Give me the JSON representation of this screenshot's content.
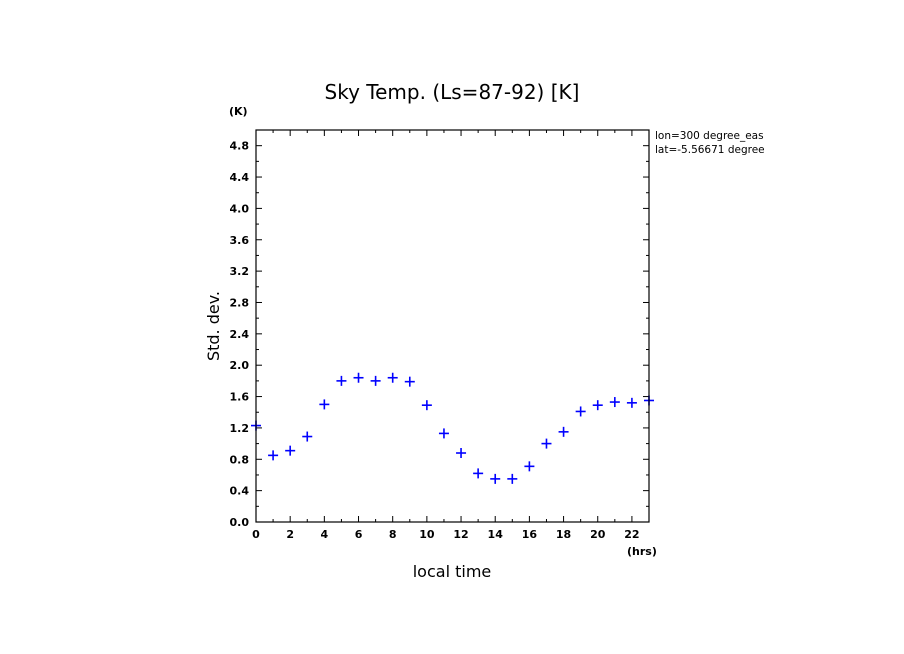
{
  "chart_data": {
    "type": "scatter",
    "title": "Sky Temp. (Ls=87-92) [K]",
    "xlabel": "local time",
    "ylabel": "Std. dev.",
    "x_unit": "(hrs)",
    "y_unit": "(K)",
    "xlim": [
      0,
      23
    ],
    "ylim": [
      0,
      5.0
    ],
    "x_ticks": [
      0,
      2,
      4,
      6,
      8,
      10,
      12,
      14,
      16,
      18,
      20,
      22
    ],
    "x_tick_labels": [
      "0",
      "2",
      "4",
      "6",
      "8",
      "10",
      "12",
      "14",
      "16",
      "18",
      "20",
      "22"
    ],
    "y_ticks": [
      0,
      0.4,
      0.8,
      1.2,
      1.6,
      2.0,
      2.4,
      2.8,
      3.2,
      3.6,
      4.0,
      4.4,
      4.8
    ],
    "y_tick_labels": [
      "0.0",
      "0.4",
      "0.8",
      "1.2",
      "1.6",
      "2.0",
      "2.4",
      "2.8",
      "3.2",
      "3.6",
      "4.0",
      "4.4",
      "4.8"
    ],
    "marker": "plus",
    "marker_color": "#0000ff",
    "annotations": [
      "lon=300 degree_eas",
      "lat=-5.56671 degree"
    ],
    "series": [
      {
        "x": [
          0,
          1,
          2,
          3,
          4,
          5,
          6,
          7,
          8,
          9,
          10,
          11,
          12,
          13,
          14,
          15,
          16,
          17,
          18,
          19,
          20,
          21,
          22,
          23
        ],
        "y": [
          1.23,
          0.85,
          0.91,
          1.09,
          1.5,
          1.8,
          1.84,
          1.8,
          1.84,
          1.79,
          1.49,
          1.13,
          0.88,
          0.62,
          0.55,
          0.55,
          0.71,
          1.0,
          1.15,
          1.41,
          1.49,
          1.53,
          1.52,
          1.55
        ]
      }
    ]
  }
}
